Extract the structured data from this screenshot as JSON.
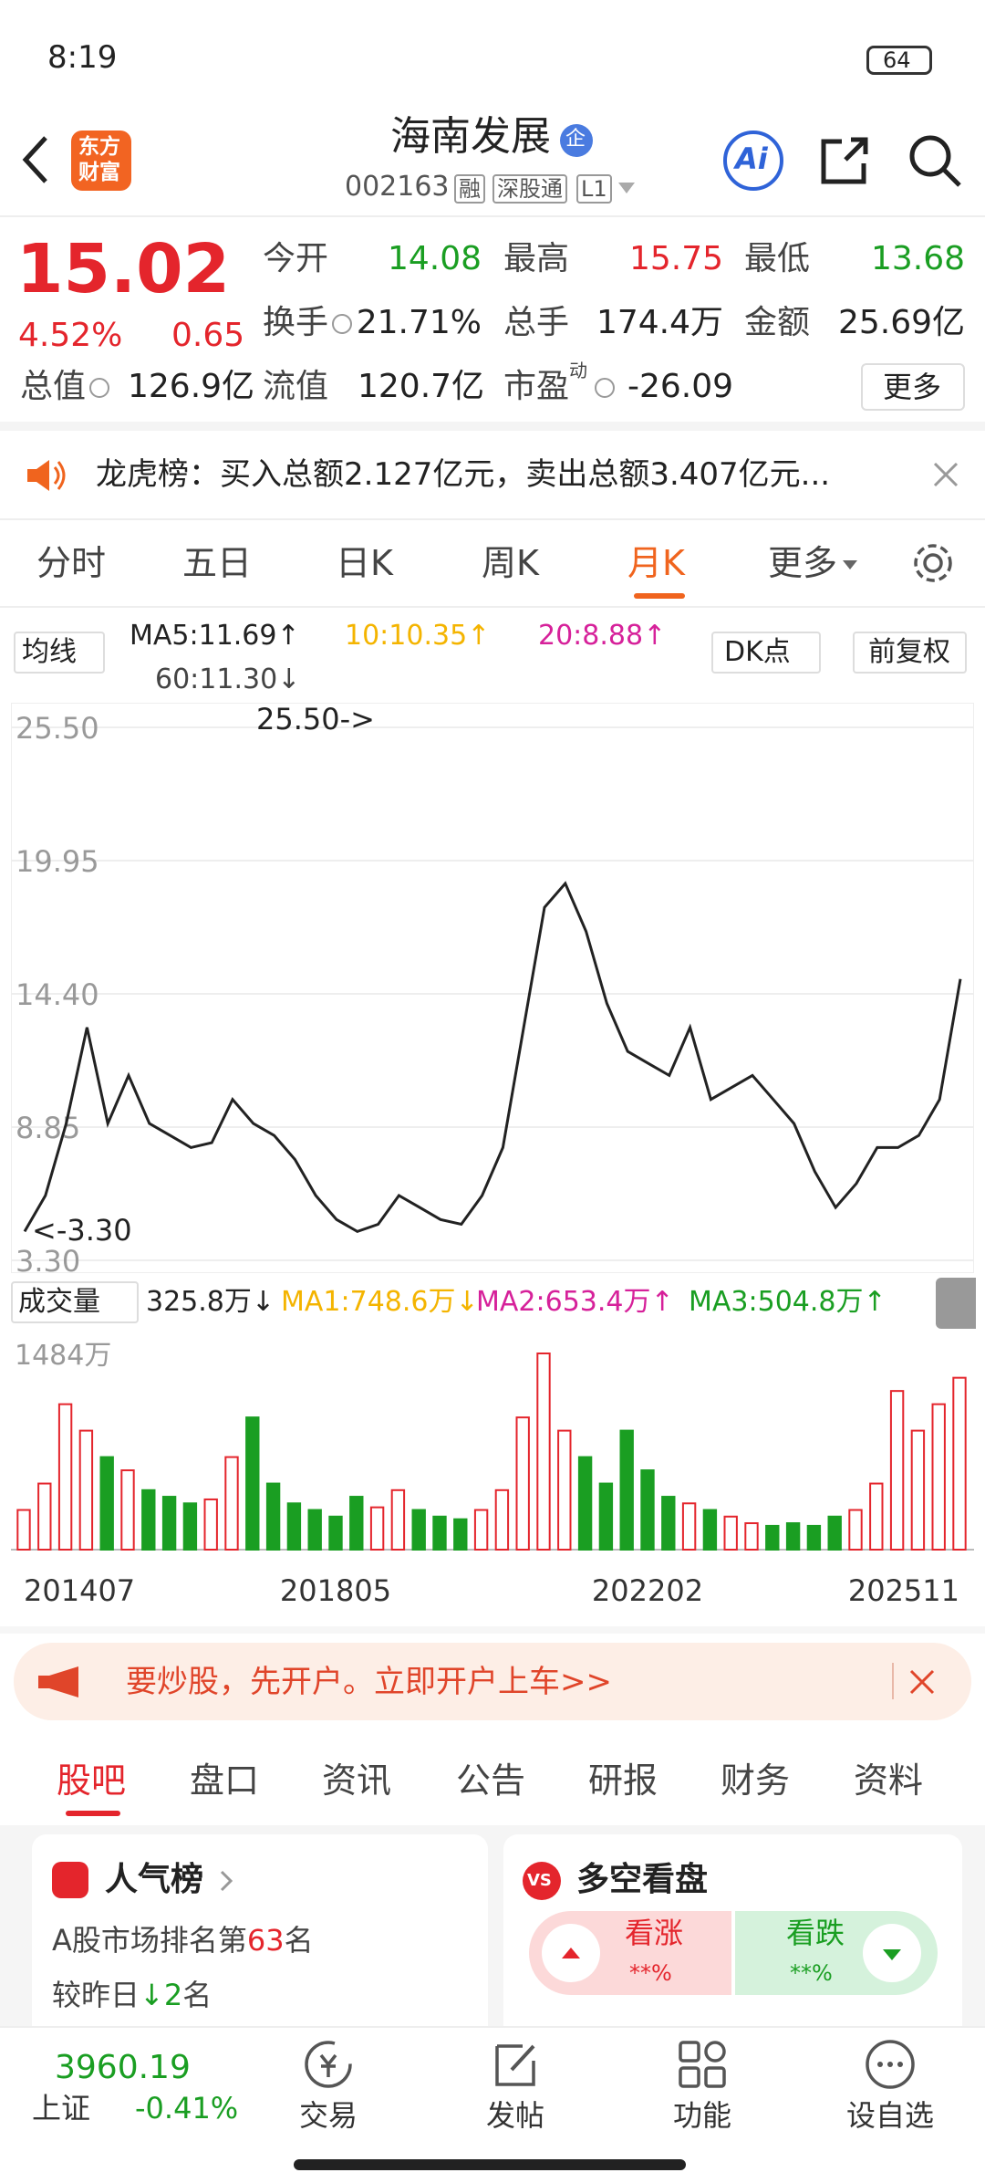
{
  "status_bar": {
    "time": "8:19",
    "battery": "64"
  },
  "header": {
    "logo": [
      "东方",
      "财富"
    ],
    "title": "海南发展",
    "badge": "企",
    "code": "002163",
    "tags": [
      "融",
      "深股通",
      "L1"
    ],
    "ai": "Ai"
  },
  "quote": {
    "price": "15.02",
    "change_pct": "4.52%",
    "change": "0.65",
    "stats": [
      {
        "label": "今开",
        "value": "14.08"
      },
      {
        "label": "最高",
        "value": "15.75"
      },
      {
        "label": "最低",
        "value": "13.68"
      },
      {
        "label": "换手",
        "value": "21.71%"
      },
      {
        "label": "总手",
        "value": "174.4万"
      },
      {
        "label": "金额",
        "value": "25.69亿"
      }
    ],
    "total_value": {
      "label": "总值",
      "value": "126.9亿"
    },
    "float_value": {
      "label": "流值",
      "value": "120.7亿"
    },
    "pe": {
      "label": "市盈",
      "sup": "动",
      "value": "-26.09"
    },
    "more": "更多"
  },
  "notice": "龙虎榜：买入总额2.127亿元，卖出总额3.407亿元...",
  "period_tabs": [
    "分时",
    "五日",
    "日K",
    "周K",
    "月K",
    "更多"
  ],
  "chart_data": [
    {
      "type": "line",
      "indicator": "均线",
      "dk": "DK点",
      "adjust": "前复权",
      "ma_labels": [
        "MA5:11.69↑",
        "10:10.35↑",
        "20:8.88↑",
        "60:11.30↓"
      ],
      "annotations": [
        "25.50->",
        "<-3.30"
      ],
      "color": "#222222",
      "values": [
        4.5,
        6,
        9,
        13,
        9,
        11,
        9,
        8.5,
        8,
        8.2,
        10,
        9,
        8.5,
        7.5,
        6,
        5,
        4.5,
        4.8,
        6,
        5.5,
        5,
        4.8,
        6,
        8,
        13,
        18,
        19,
        17,
        14,
        12,
        11.5,
        11,
        13,
        10,
        10.5,
        11,
        10,
        9,
        7,
        5.5,
        6.5,
        8,
        8,
        8.5,
        10,
        15.02
      ],
      "ylim": [
        3.3,
        25.5
      ],
      "yticks": [
        {
          "value": 3.3,
          "label": "3.30"
        },
        {
          "value": 8.85,
          "label": "8.85"
        },
        {
          "value": 14.4,
          "label": "14.40"
        },
        {
          "value": 19.95,
          "label": "19.95"
        },
        {
          "value": 25.5,
          "label": "25.50"
        }
      ],
      "grid": true
    },
    {
      "type": "bar",
      "indicator": "成交量",
      "labels": [
        "325.8万↓",
        "MA1:748.6万↓",
        "MA2:653.4万↑",
        "MA3:504.8万↑"
      ],
      "up_color": "#e4252c",
      "down_color": "#1a9e22",
      "categories": [
        "201407",
        null,
        null,
        null,
        null,
        null,
        null,
        null,
        null,
        null,
        null,
        null,
        null,
        null,
        null,
        "201805",
        null,
        null,
        null,
        null,
        null,
        null,
        null,
        null,
        null,
        null,
        null,
        null,
        null,
        null,
        "202202",
        null,
        null,
        null,
        null,
        null,
        null,
        null,
        null,
        null,
        null,
        null,
        null,
        null,
        null,
        "202511"
      ],
      "values": [
        300,
        500,
        1100,
        900,
        700,
        600,
        450,
        400,
        350,
        380,
        700,
        1000,
        500,
        350,
        300,
        250,
        400,
        320,
        450,
        300,
        250,
        230,
        300,
        450,
        1000,
        1484,
        900,
        700,
        500,
        900,
        600,
        400,
        350,
        300,
        250,
        200,
        180,
        200,
        180,
        250,
        300,
        500,
        1200,
        900,
        1100,
        1300
      ],
      "ylim": [
        0,
        1484
      ],
      "yticks": [
        {
          "value": 1484,
          "label": "1484万"
        }
      ],
      "grid": false
    }
  ],
  "banner": "要炒股，先开户。立即开户上车>>",
  "section_tabs": [
    "股吧",
    "盘口",
    "资讯",
    "公告",
    "研报",
    "财务",
    "资料"
  ],
  "popularity": {
    "title": "人气榜",
    "rank_prefix": "A股市场排名第",
    "rank": "63",
    "rank_suffix": "名",
    "change_prefix": "较昨日",
    "change": "↓2",
    "change_suffix": "名"
  },
  "sentiment": {
    "icon": "VS",
    "title": "多空看盘",
    "bull": "看涨",
    "bull_value": "**%",
    "bear": "看跌",
    "bear_value": "**%"
  },
  "bottom_bar": {
    "index_value": "3960.19",
    "index_name": "上证",
    "index_change": "-0.41%",
    "items": [
      "交易",
      "发帖",
      "功能",
      "设自选"
    ]
  }
}
